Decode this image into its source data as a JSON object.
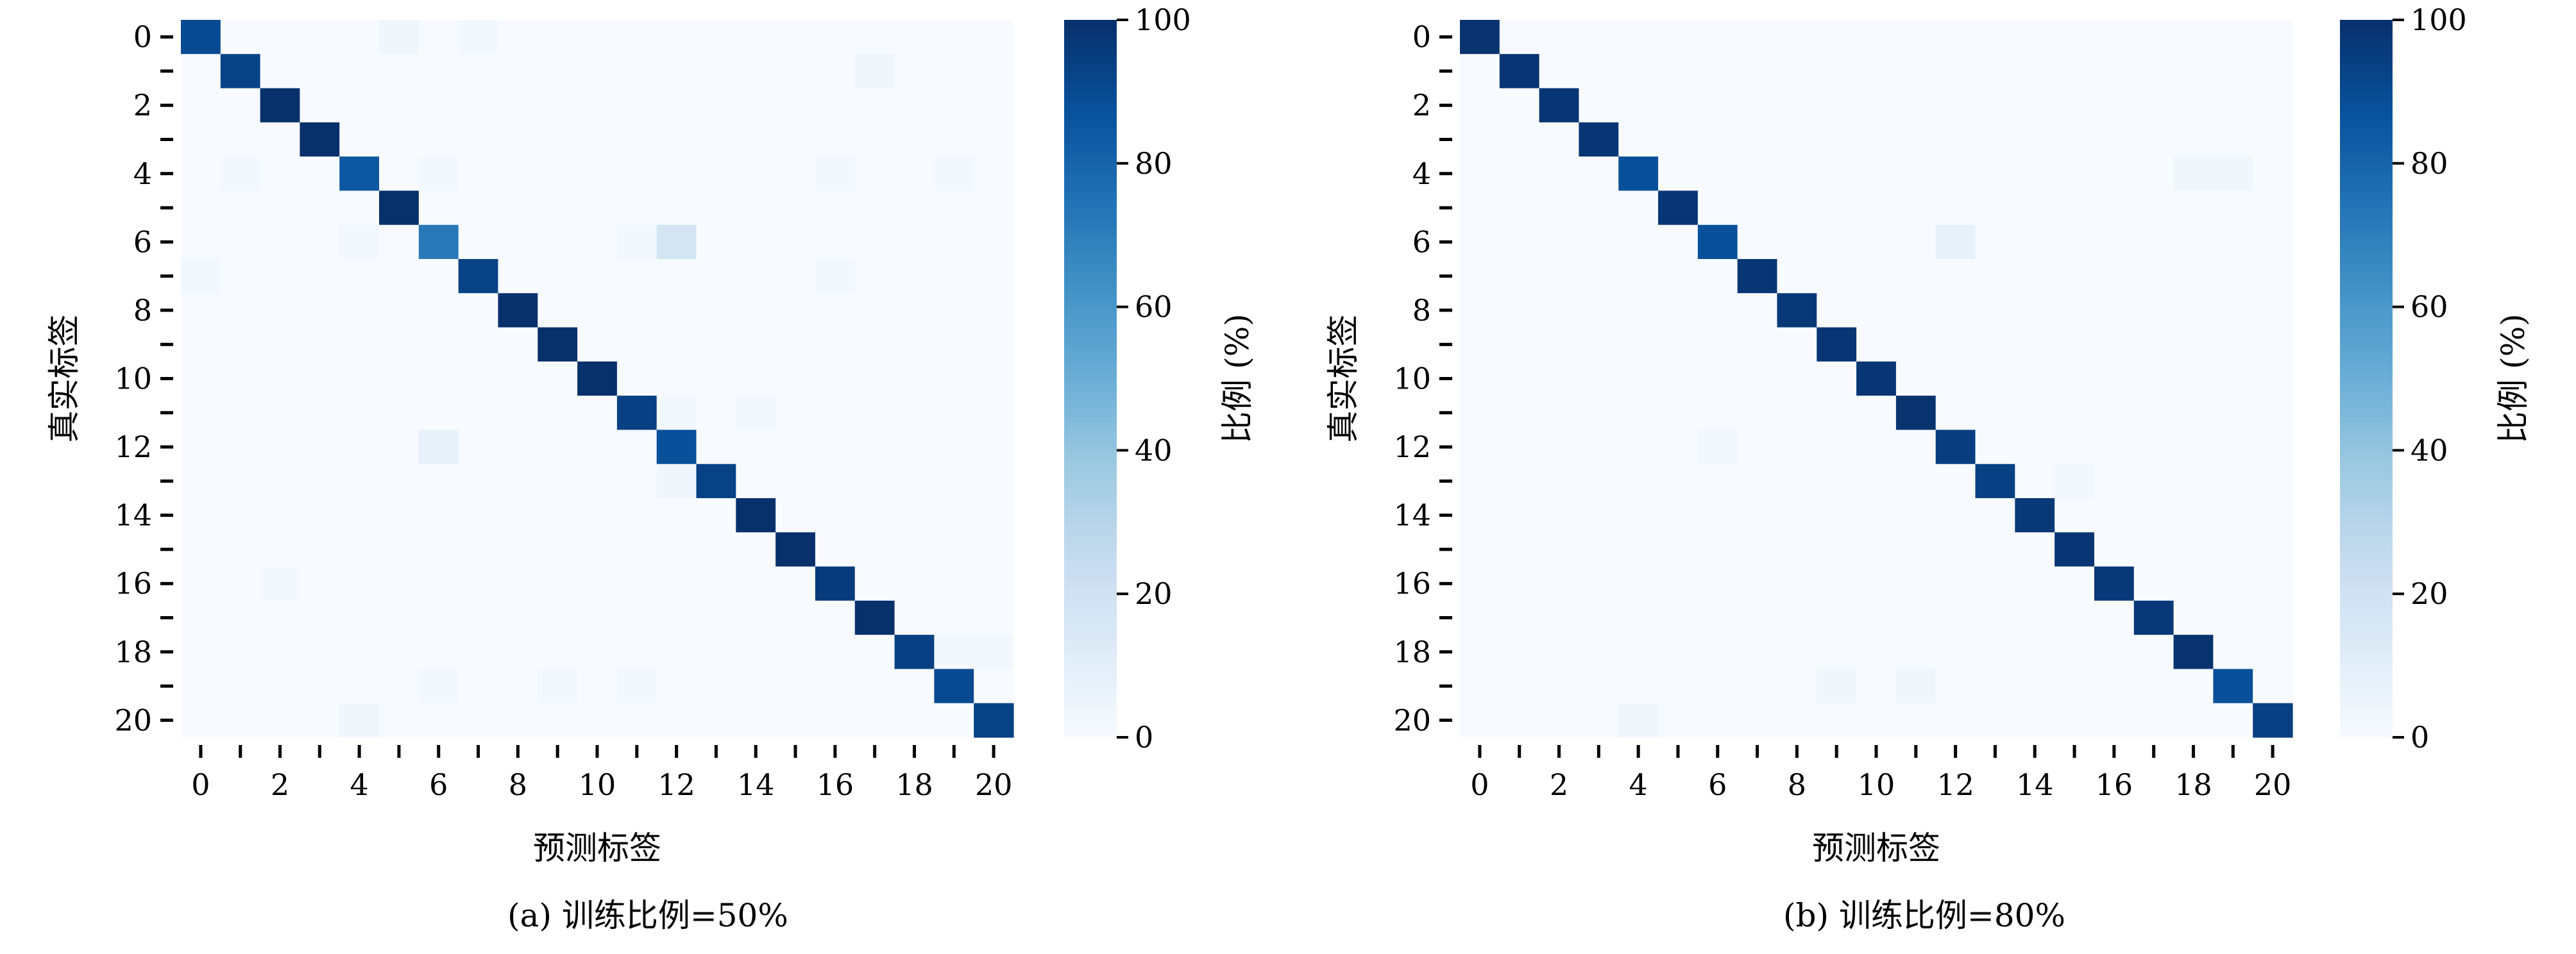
{
  "colormap": "Blues",
  "colormap_low": "#f7fbff",
  "colormap_high": "#08306b",
  "chart_data": [
    {
      "type": "heatmap",
      "caption": "(a) 训练比例=50%",
      "xlabel": "预测标签",
      "ylabel": "真实标签",
      "colorbar_label": "比例 (%)",
      "colorbar_range": [
        0,
        100
      ],
      "colorbar_ticks": [
        "0",
        "20",
        "40",
        "60",
        "80",
        "100"
      ],
      "x_tick_labels": [
        "0",
        "2",
        "4",
        "6",
        "8",
        "10",
        "12",
        "14",
        "16",
        "18",
        "20"
      ],
      "y_tick_labels": [
        "0",
        "2",
        "4",
        "6",
        "8",
        "10",
        "12",
        "14",
        "16",
        "18",
        "20"
      ],
      "classes": 21,
      "diagonal": [
        90,
        93,
        100,
        100,
        85,
        100,
        72,
        93,
        100,
        100,
        100,
        94,
        88,
        93,
        100,
        100,
        96,
        100,
        94,
        90,
        93
      ],
      "off_diagonal": [
        [
          0,
          5,
          4
        ],
        [
          0,
          7,
          2
        ],
        [
          1,
          17,
          4
        ],
        [
          4,
          1,
          2
        ],
        [
          4,
          6,
          2
        ],
        [
          4,
          16,
          2
        ],
        [
          4,
          19,
          2
        ],
        [
          6,
          4,
          2
        ],
        [
          6,
          11,
          2
        ],
        [
          6,
          12,
          18
        ],
        [
          7,
          0,
          2
        ],
        [
          7,
          16,
          2
        ],
        [
          11,
          12,
          2
        ],
        [
          11,
          14,
          2
        ],
        [
          12,
          6,
          8
        ],
        [
          13,
          12,
          4
        ],
        [
          16,
          2,
          2
        ],
        [
          18,
          19,
          2
        ],
        [
          18,
          20,
          2
        ],
        [
          19,
          6,
          2
        ],
        [
          19,
          9,
          2
        ],
        [
          19,
          11,
          2
        ],
        [
          20,
          4,
          4
        ]
      ]
    },
    {
      "type": "heatmap",
      "caption": "(b) 训练比例=80%",
      "xlabel": "预测标签",
      "ylabel": "真实标签",
      "colorbar_label": "比例 (%)",
      "colorbar_range": [
        0,
        100
      ],
      "colorbar_ticks": [
        "0",
        "20",
        "40",
        "60",
        "80",
        "100"
      ],
      "x_tick_labels": [
        "0",
        "2",
        "4",
        "6",
        "8",
        "10",
        "12",
        "14",
        "16",
        "18",
        "20"
      ],
      "y_tick_labels": [
        "0",
        "2",
        "4",
        "6",
        "8",
        "10",
        "12",
        "14",
        "16",
        "18",
        "20"
      ],
      "classes": 21,
      "diagonal": [
        99,
        98,
        98,
        98,
        88,
        98,
        88,
        98,
        97,
        98,
        98,
        99,
        95,
        94,
        97,
        98,
        97,
        97,
        99,
        88,
        94
      ],
      "off_diagonal": [
        [
          4,
          18,
          4
        ],
        [
          4,
          19,
          4
        ],
        [
          6,
          12,
          8
        ],
        [
          12,
          6,
          3
        ],
        [
          13,
          15,
          3
        ],
        [
          19,
          9,
          4
        ],
        [
          19,
          11,
          4
        ],
        [
          20,
          4,
          4
        ]
      ]
    }
  ]
}
